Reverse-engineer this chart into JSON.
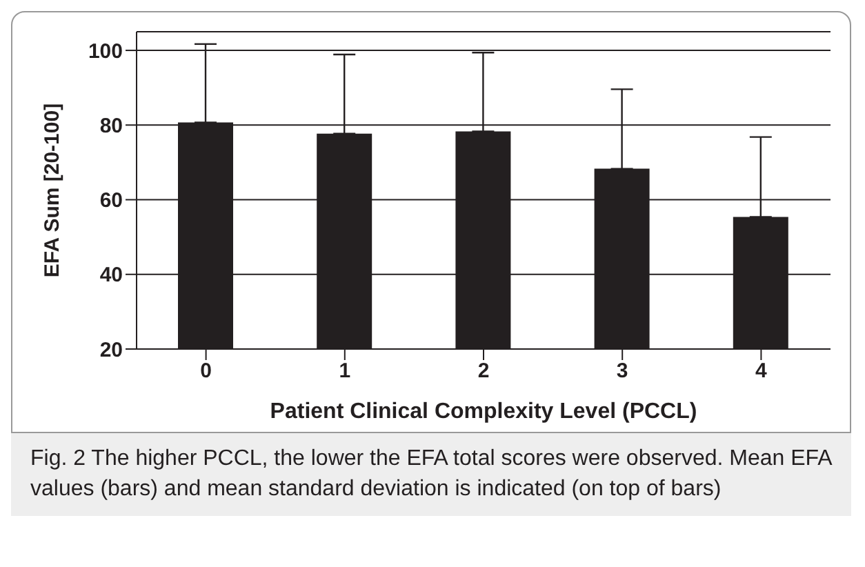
{
  "chart_data": {
    "type": "bar",
    "xlabel": "Patient Clinical Complexity Level (PCCL)",
    "ylabel": "EFA Sum [20-100]",
    "categories": [
      "0",
      "1",
      "2",
      "3",
      "4"
    ],
    "values": [
      80.7,
      77.7,
      78.3,
      68.3,
      55.4
    ],
    "errors": [
      [
        80.7,
        101.7
      ],
      [
        77.7,
        98.9
      ],
      [
        78.3,
        99.4
      ],
      [
        68.3,
        89.6
      ],
      [
        55.4,
        76.8
      ]
    ],
    "color": "#231f20",
    "ylim": [
      20,
      105
    ],
    "yticks": [
      20,
      40,
      60,
      80,
      100
    ],
    "grid": "y",
    "annotations": [
      "Fig. 2 The higher PCCL, the lower the EFA total scores were observed. Mean EFA values (bars) and mean standard deviation is indicated (on top of bars)"
    ]
  }
}
